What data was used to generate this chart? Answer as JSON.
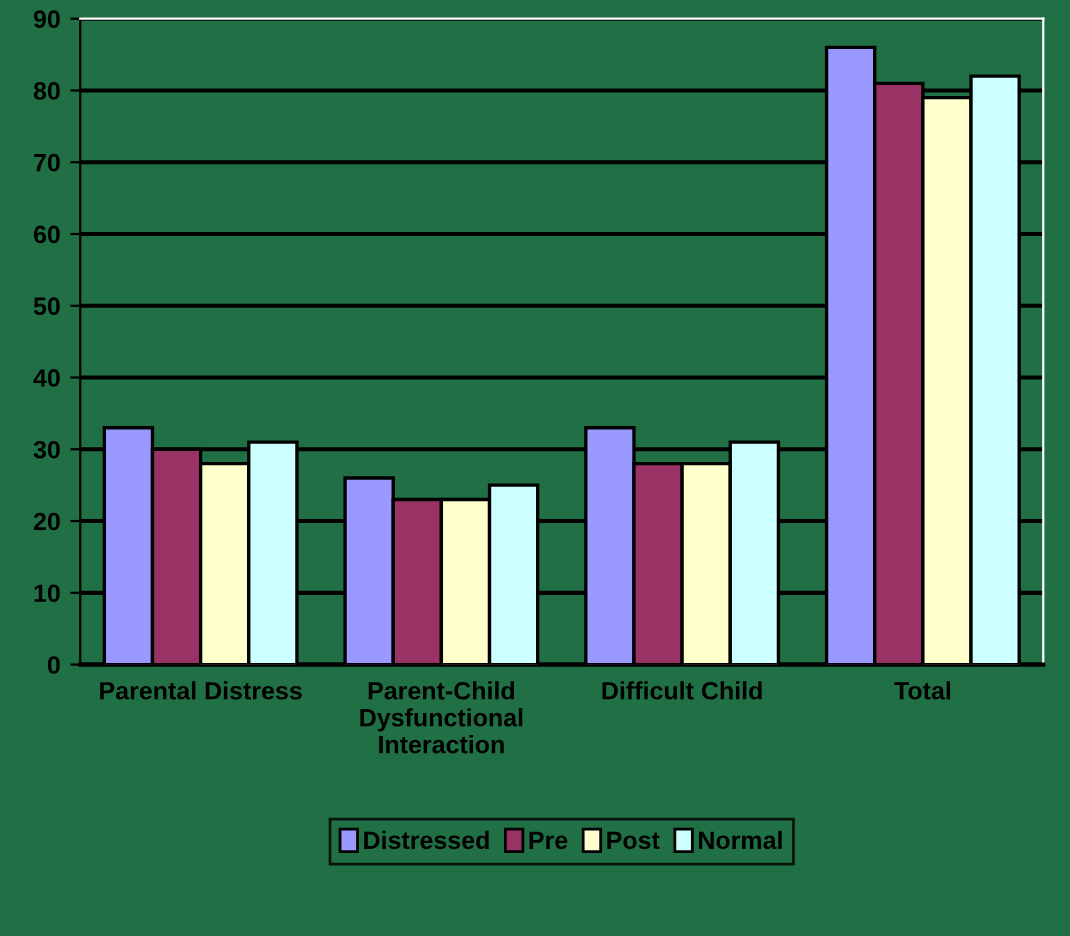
{
  "chart_data": {
    "type": "bar",
    "categories": [
      "Parental Distress",
      "Parent-Child\nDysfunctional\nInteraction",
      "Difficult Child",
      "Total"
    ],
    "series": [
      {
        "name": "Distressed",
        "color": "#9999ff",
        "values": [
          33,
          26,
          33,
          86
        ]
      },
      {
        "name": "Pre",
        "color": "#993366",
        "values": [
          30,
          23,
          28,
          81
        ]
      },
      {
        "name": "Post",
        "color": "#ffffcc",
        "values": [
          28,
          23,
          28,
          79
        ]
      },
      {
        "name": "Normal",
        "color": "#ccffff",
        "values": [
          31,
          25,
          31,
          82
        ]
      }
    ],
    "ylim": [
      0,
      90
    ],
    "yticks": [
      0,
      10,
      20,
      30,
      40,
      50,
      60,
      70,
      80,
      90
    ],
    "grid": "y",
    "legend": "bottom"
  }
}
